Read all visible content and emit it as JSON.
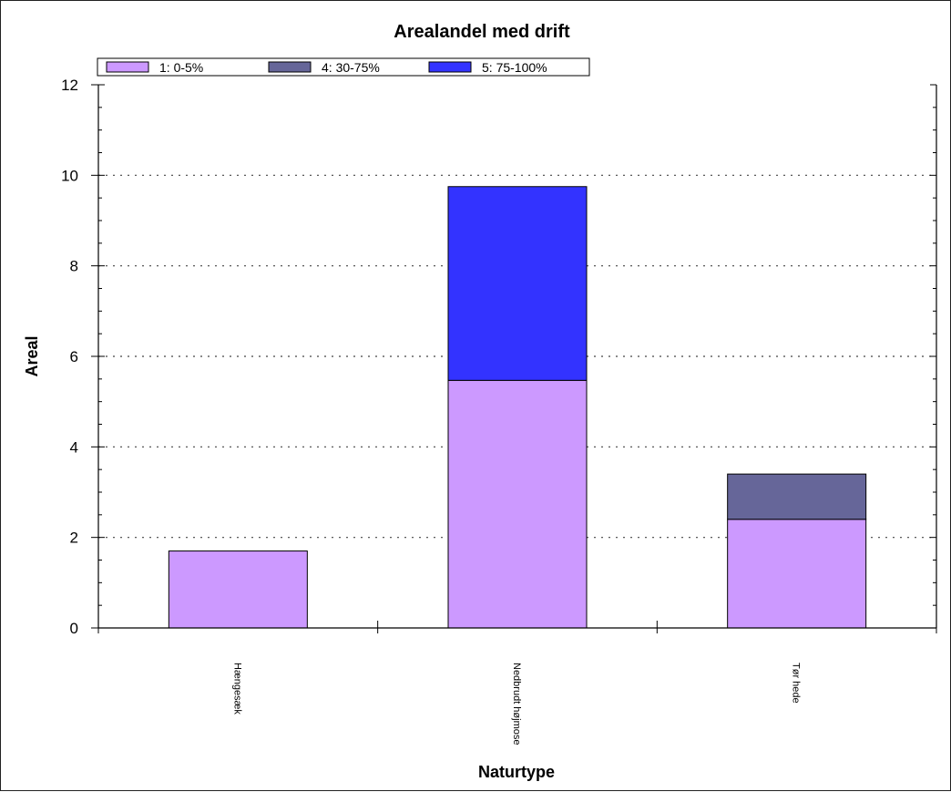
{
  "chart_data": {
    "type": "bar",
    "stacked": true,
    "title": "Arealandel med drift",
    "xlabel": "Naturtype",
    "ylabel": "Areal",
    "ylim": [
      0,
      12
    ],
    "yticks": [
      0,
      2,
      4,
      6,
      8,
      10,
      12
    ],
    "grid": true,
    "legend_position": "top-left",
    "categories": [
      "Hængesæk",
      "Nedbrudt højmose",
      "Tør hede"
    ],
    "series": [
      {
        "name": "1: 0-5%",
        "color": "#cc99ff",
        "values": [
          1.7,
          5.47,
          2.4
        ]
      },
      {
        "name": "4: 30-75%",
        "color": "#666699",
        "values": [
          0,
          0,
          1.0
        ]
      },
      {
        "name": "5: 75-100%",
        "color": "#3333ff",
        "values": [
          0,
          4.28,
          0
        ]
      }
    ]
  }
}
